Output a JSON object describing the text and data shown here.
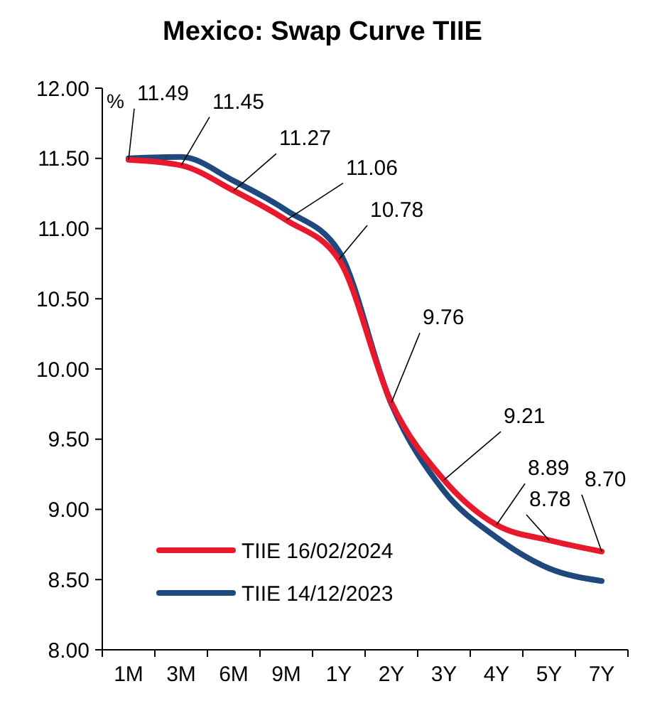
{
  "chart_data": {
    "type": "line",
    "title": "Mexico: Swap Curve TIIE",
    "ylabel": "%",
    "categories": [
      "1M",
      "3M",
      "6M",
      "9M",
      "1Y",
      "2Y",
      "3Y",
      "4Y",
      "5Y",
      "7Y"
    ],
    "series": [
      {
        "name": "TIIE 16/02/2024",
        "color": "#e8192c",
        "values": [
          11.49,
          11.45,
          11.27,
          11.06,
          10.78,
          9.76,
          9.21,
          8.89,
          8.78,
          8.7
        ],
        "value_labels": [
          "11.49",
          "11.45",
          "11.27",
          "11.06",
          "10.78",
          "9.76",
          "9.21",
          "8.89",
          "8.78",
          "8.70"
        ]
      },
      {
        "name": "TIIE 14/12/2023",
        "color": "#1f497d",
        "values": [
          11.5,
          11.51,
          11.34,
          11.13,
          10.84,
          9.75,
          9.13,
          8.8,
          8.58,
          8.49
        ]
      }
    ],
    "ylim": [
      8,
      12
    ],
    "yticks": [
      {
        "value": 8,
        "label": "8.00"
      },
      {
        "value": 8.5,
        "label": "8.50"
      },
      {
        "value": 9,
        "label": "9.00"
      },
      {
        "value": 9.5,
        "label": "9.50"
      },
      {
        "value": 10,
        "label": "10.00"
      },
      {
        "value": 10.5,
        "label": "10.50"
      },
      {
        "value": 11,
        "label": "11.00"
      },
      {
        "value": 11.5,
        "label": "11.50"
      },
      {
        "value": 12,
        "label": "12.00"
      }
    ],
    "grid": false,
    "legend": "bottom left",
    "marker": "none",
    "line_style": "solid"
  }
}
